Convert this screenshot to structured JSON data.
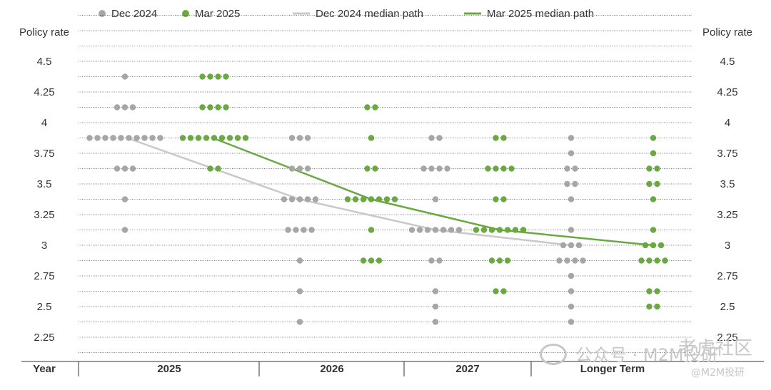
{
  "chart_data": {
    "type": "scatter",
    "ylabel_left": "Policy rate",
    "ylabel_right": "Policy rate",
    "x_label": "Year",
    "yticks": [
      "4.5",
      "4.25",
      "4",
      "3.75",
      "3.5",
      "3.25",
      "3",
      "2.75",
      "2.5",
      "2.25"
    ],
    "ylim": [
      2.125,
      4.875
    ],
    "grid": true,
    "legend_position": "top-left",
    "categories": [
      "2025",
      "2026",
      "2027",
      "Longer Term"
    ],
    "legend": [
      {
        "label": "Dec 2024",
        "type": "dot",
        "color": "#a6a6a6"
      },
      {
        "label": "Mar 2025",
        "type": "dot",
        "color": "#6aa842"
      },
      {
        "label": "Dec 2024 median path",
        "type": "line",
        "color": "#c9c9c9"
      },
      {
        "label": "Mar 2025 median path",
        "type": "line",
        "color": "#6aa842"
      }
    ],
    "series": [
      {
        "name": "Dec 2024",
        "color": "#a6a6a6",
        "dots": {
          "2025": {
            "4.375": 1,
            "4.125": 3,
            "3.875": 10,
            "3.625": 3,
            "3.375": 1,
            "3.125": 1
          },
          "2026": {
            "3.875": 3,
            "3.625": 3,
            "3.375": 5,
            "3.125": 4,
            "2.875": 1,
            "2.625": 1,
            "2.375": 1
          },
          "2027": {
            "3.875": 2,
            "3.625": 4,
            "3.375": 1,
            "3.125": 7,
            "2.875": 2,
            "2.625": 1,
            "2.5": 1,
            "2.375": 1
          },
          "Longer Term": {
            "3.875": 1,
            "3.75": 1,
            "3.625": 2,
            "3.5": 2,
            "3.375": 1,
            "3.125": 1,
            "3.0": 3,
            "2.875": 4,
            "2.75": 1,
            "2.625": 1,
            "2.5": 1,
            "2.375": 1
          }
        },
        "median_path": [
          3.875,
          3.375,
          3.125,
          3.0
        ]
      },
      {
        "name": "Mar 2025",
        "color": "#6aa842",
        "dots": {
          "2025": {
            "4.375": 4,
            "4.125": 4,
            "3.875": 9,
            "3.625": 2
          },
          "2026": {
            "4.125": 2,
            "3.875": 1,
            "3.625": 2,
            "3.375": 7,
            "3.125": 1,
            "2.875": 3
          },
          "2027": {
            "3.875": 2,
            "3.625": 4,
            "3.375": 2,
            "3.125": 7,
            "2.875": 3,
            "2.625": 2
          },
          "Longer Term": {
            "3.875": 1,
            "3.75": 1,
            "3.625": 2,
            "3.5": 2,
            "3.375": 1,
            "3.125": 1,
            "3.0": 3,
            "2.875": 4,
            "2.625": 2,
            "2.5": 2
          }
        },
        "median_path": [
          3.875,
          3.375,
          3.125,
          3.0
        ]
      }
    ]
  },
  "watermark": {
    "brand": "公众号 · M2M投研",
    "corner": "老虎社区",
    "handle": "@M2M投研"
  }
}
